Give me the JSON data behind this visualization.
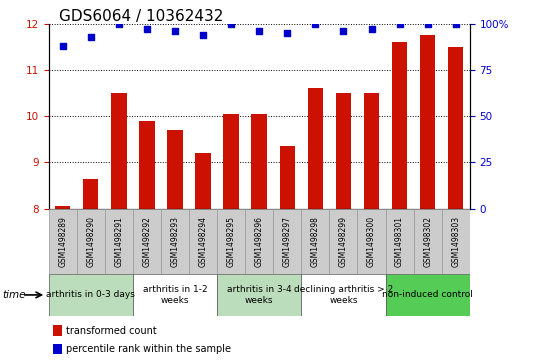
{
  "title": "GDS6064 / 10362432",
  "samples": [
    "GSM1498289",
    "GSM1498290",
    "GSM1498291",
    "GSM1498292",
    "GSM1498293",
    "GSM1498294",
    "GSM1498295",
    "GSM1498296",
    "GSM1498297",
    "GSM1498298",
    "GSM1498299",
    "GSM1498300",
    "GSM1498301",
    "GSM1498302",
    "GSM1498303"
  ],
  "bar_values": [
    8.05,
    8.65,
    10.5,
    9.9,
    9.7,
    9.2,
    10.05,
    10.05,
    9.35,
    10.6,
    10.5,
    10.5,
    11.6,
    11.75,
    11.5
  ],
  "percentile_values": [
    88,
    93,
    100,
    97,
    96,
    94,
    100,
    96,
    95,
    100,
    96,
    97,
    100,
    100,
    100
  ],
  "bar_color": "#cc1100",
  "dot_color": "#0000cc",
  "ylim_left": [
    8,
    12
  ],
  "ylim_right": [
    0,
    100
  ],
  "yticks_left": [
    8,
    9,
    10,
    11,
    12
  ],
  "yticks_right": [
    0,
    25,
    50,
    75,
    100
  ],
  "ytick_labels_right": [
    "0",
    "25",
    "50",
    "75",
    "100%"
  ],
  "groups": [
    {
      "label": "arthritis in 0-3 days",
      "start": 0,
      "end": 3,
      "color": "#bbddbb"
    },
    {
      "label": "arthritis in 1-2\nweeks",
      "start": 3,
      "end": 6,
      "color": "#ffffff"
    },
    {
      "label": "arthritis in 3-4\nweeks",
      "start": 6,
      "end": 9,
      "color": "#bbddbb"
    },
    {
      "label": "declining arthritis > 2\nweeks",
      "start": 9,
      "end": 12,
      "color": "#ffffff"
    },
    {
      "label": "non-induced control",
      "start": 12,
      "end": 15,
      "color": "#55cc55"
    }
  ],
  "legend_items": [
    {
      "label": "transformed count",
      "color": "#cc1100"
    },
    {
      "label": "percentile rank within the sample",
      "color": "#0000cc"
    }
  ],
  "time_label": "time",
  "axis_label_color_left": "#cc1100",
  "axis_label_color_right": "#0000cc",
  "sample_box_color": "#cccccc",
  "sample_box_edge": "#999999"
}
